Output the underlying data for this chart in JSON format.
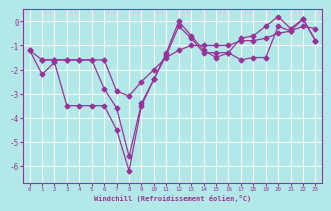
{
  "xlabel": "Windchill (Refroidissement éolien,°C)",
  "bg_color": "#b2e8e8",
  "line_color": "#993399",
  "grid_color": "#ffffff",
  "xlim": [
    -0.5,
    23.5
  ],
  "ylim": [
    -6.7,
    0.5
  ],
  "yticks": [
    0,
    -1,
    -2,
    -3,
    -4,
    -5,
    -6
  ],
  "xticks": [
    0,
    1,
    2,
    3,
    4,
    5,
    6,
    7,
    8,
    9,
    10,
    11,
    12,
    13,
    14,
    15,
    16,
    17,
    18,
    19,
    20,
    21,
    22,
    23
  ],
  "line1_x": [
    0,
    1,
    2,
    3,
    4,
    5,
    6,
    7,
    8,
    9,
    10,
    11,
    12,
    13,
    14,
    15,
    16,
    17,
    18,
    19,
    20,
    21,
    22,
    23
  ],
  "line1_y": [
    -1.2,
    -2.2,
    -1.7,
    -3.5,
    -3.5,
    -3.5,
    -3.5,
    -4.5,
    -6.2,
    -3.5,
    -2.4,
    -1.4,
    -0.2,
    -0.7,
    -1.3,
    -1.3,
    -1.3,
    -1.6,
    -1.5,
    -1.5,
    -0.2,
    -0.4,
    0.1,
    -0.8
  ],
  "line2_x": [
    0,
    1,
    2,
    3,
    4,
    5,
    6,
    7,
    8,
    9,
    10,
    11,
    12,
    13,
    14,
    15,
    16,
    17,
    18,
    19,
    20,
    21,
    22,
    23
  ],
  "line2_y": [
    -1.2,
    -1.6,
    -1.6,
    -1.6,
    -1.6,
    -1.6,
    -1.6,
    -2.9,
    -3.1,
    -2.5,
    -2.0,
    -1.5,
    -1.2,
    -1.0,
    -1.0,
    -1.0,
    -1.0,
    -0.8,
    -0.8,
    -0.7,
    -0.5,
    -0.4,
    -0.2,
    -0.3
  ],
  "line3_x": [
    1,
    2,
    3,
    4,
    5,
    6,
    7,
    8,
    9,
    10,
    11,
    12,
    13,
    14,
    15,
    16,
    17,
    18,
    19,
    20,
    21,
    22,
    23
  ],
  "line3_y": [
    -1.6,
    -1.6,
    -1.6,
    -1.6,
    -1.6,
    -2.8,
    -3.6,
    -5.6,
    -3.4,
    -2.4,
    -1.3,
    0.0,
    -0.6,
    -1.2,
    -1.5,
    -1.3,
    -0.7,
    -0.6,
    -0.2,
    0.2,
    -0.3,
    0.1,
    -0.8
  ]
}
